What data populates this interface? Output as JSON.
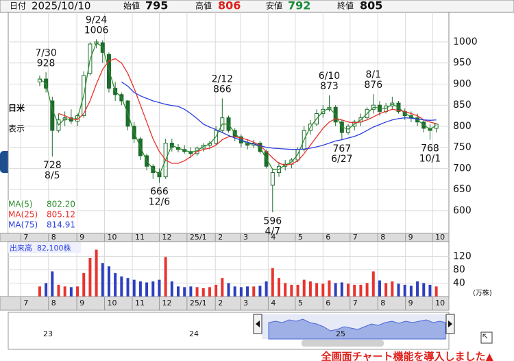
{
  "header": {
    "items": [
      {
        "label": "日付",
        "value": "2025/10/10",
        "color": "#111111"
      },
      {
        "label": "始値",
        "value": 795,
        "color": "#111111"
      },
      {
        "label": "高値",
        "value": 806,
        "color": "#e0201b"
      },
      {
        "label": "安値",
        "value": 792,
        "color": "#1c8a3a"
      },
      {
        "label": "終値",
        "value": 805,
        "color": "#111111"
      }
    ]
  },
  "side": {
    "labels": [
      "日米",
      "表示"
    ]
  },
  "footer": "全画面チャート機能を導入しました▲",
  "chart_data": [
    {
      "type": "candlestick",
      "x": [
        3,
        4,
        5,
        6,
        7,
        8,
        9,
        10,
        11,
        12,
        13,
        14,
        15,
        16,
        17,
        18,
        19,
        20,
        21,
        22,
        23,
        24,
        25,
        26,
        27,
        28,
        29,
        30,
        31,
        32,
        33,
        34,
        35,
        36,
        37,
        38,
        39,
        40,
        41,
        42,
        43,
        44,
        45,
        46,
        47,
        48,
        49,
        50,
        51,
        52,
        53,
        54,
        55,
        56,
        57,
        58,
        59,
        60,
        61,
        62,
        63,
        64,
        65,
        66
      ],
      "open": [
        905,
        912,
        860,
        790,
        815,
        820,
        812,
        825,
        925,
        995,
        998,
        970,
        890,
        875,
        860,
        800,
        770,
        730,
        705,
        690,
        680,
        760,
        750,
        745,
        740,
        735,
        748,
        755,
        760,
        790,
        820,
        790,
        775,
        760,
        755,
        760,
        740,
        660,
        690,
        705,
        710,
        720,
        745,
        790,
        805,
        830,
        840,
        845,
        810,
        785,
        800,
        810,
        820,
        840,
        850,
        835,
        848,
        855,
        835,
        825,
        820,
        810,
        795,
        795
      ],
      "high": [
        920,
        928,
        870,
        830,
        835,
        840,
        830,
        930,
        1000,
        1006,
        1004,
        975,
        905,
        880,
        862,
        810,
        775,
        735,
        710,
        700,
        770,
        770,
        758,
        755,
        750,
        752,
        760,
        765,
        800,
        866,
        825,
        795,
        780,
        770,
        768,
        765,
        745,
        700,
        715,
        720,
        725,
        750,
        800,
        815,
        840,
        850,
        873,
        850,
        815,
        805,
        815,
        830,
        845,
        876,
        860,
        855,
        870,
        860,
        842,
        835,
        830,
        815,
        805,
        806
      ],
      "low": [
        895,
        880,
        728,
        785,
        800,
        805,
        800,
        820,
        920,
        985,
        950,
        880,
        860,
        850,
        790,
        760,
        720,
        695,
        675,
        666,
        675,
        740,
        738,
        735,
        725,
        730,
        740,
        745,
        755,
        785,
        785,
        765,
        750,
        745,
        748,
        735,
        700,
        596,
        680,
        695,
        700,
        715,
        740,
        780,
        800,
        820,
        835,
        800,
        767,
        780,
        790,
        800,
        815,
        830,
        825,
        830,
        840,
        830,
        815,
        810,
        800,
        785,
        768,
        785
      ],
      "close": [
        912,
        890,
        790,
        815,
        820,
        812,
        825,
        920,
        995,
        1000,
        975,
        890,
        875,
        860,
        800,
        770,
        730,
        705,
        690,
        680,
        760,
        750,
        745,
        740,
        735,
        748,
        755,
        760,
        790,
        820,
        790,
        775,
        760,
        755,
        760,
        740,
        705,
        690,
        705,
        710,
        720,
        745,
        790,
        805,
        830,
        840,
        845,
        810,
        785,
        800,
        810,
        820,
        840,
        850,
        835,
        848,
        855,
        835,
        825,
        820,
        810,
        795,
        790,
        805
      ],
      "candle_color": "#1e6b2e",
      "series": [
        {
          "name": "MA(5)",
          "color": "#2e8b2e",
          "last": {
            "value": 802.2,
            "label": "802.20"
          },
          "values": [
            912,
            901,
            840,
            803,
            818,
            816,
            819,
            873,
            958,
            998,
            988,
            933,
            883,
            868,
            830,
            785,
            750,
            718,
            698,
            685,
            720,
            755,
            748,
            743,
            738,
            742,
            752,
            758,
            775,
            805,
            805,
            783,
            768,
            758,
            758,
            750,
            723,
            698,
            698,
            708,
            715,
            733,
            768,
            798,
            818,
            835,
            843,
            828,
            798,
            793,
            805,
            815,
            830,
            845,
            843,
            842,
            852,
            845,
            830,
            823,
            815,
            803,
            793,
            802
          ]
        },
        {
          "name": "MA(25)",
          "color": "#e8302a",
          "last": {
            "value": 805.12,
            "label": "805.12"
          },
          "values": [
            null,
            null,
            null,
            830,
            825,
            818,
            815,
            830,
            860,
            900,
            935,
            955,
            960,
            950,
            925,
            890,
            850,
            810,
            770,
            740,
            720,
            712,
            712,
            718,
            728,
            740,
            745,
            748,
            755,
            768,
            775,
            775,
            772,
            768,
            762,
            755,
            740,
            725,
            712,
            708,
            710,
            718,
            735,
            755,
            775,
            795,
            810,
            818,
            815,
            810,
            808,
            810,
            815,
            822,
            830,
            835,
            840,
            838,
            835,
            830,
            825,
            815,
            810,
            806
          ]
        },
        {
          "name": "MA(75)",
          "color": "#2a3fe0",
          "last": {
            "value": 814.91,
            "label": "814.91"
          },
          "values": [
            null,
            null,
            null,
            null,
            null,
            null,
            null,
            null,
            null,
            null,
            null,
            null,
            null,
            905,
            895,
            880,
            872,
            866,
            860,
            856,
            852,
            849,
            847,
            840,
            830,
            818,
            805,
            798,
            792,
            785,
            778,
            772,
            767,
            762,
            758,
            754,
            750,
            748,
            747,
            746,
            745,
            745,
            746,
            748,
            751,
            755,
            760,
            765,
            768,
            772,
            776,
            782,
            790,
            798,
            804,
            810,
            815,
            818,
            820,
            819,
            817,
            815,
            814,
            815
          ]
        }
      ],
      "annotations": [
        {
          "x": 4,
          "date": "7/30",
          "value": 928,
          "pos": "above"
        },
        {
          "x": 5,
          "date": "8/5",
          "value": 728,
          "pos": "below"
        },
        {
          "x": 12,
          "date": "9/24",
          "value": 1006,
          "pos": "above"
        },
        {
          "x": 22,
          "date": "12/6",
          "value": 666,
          "pos": "below"
        },
        {
          "x": 32,
          "date": "2/12",
          "value": 866,
          "pos": "above"
        },
        {
          "x": 40,
          "date": "4/7",
          "value": 596,
          "pos": "below"
        },
        {
          "x": 49,
          "date": "6/10",
          "value": 873,
          "pos": "above"
        },
        {
          "x": 51,
          "date": "6/27",
          "value": 767,
          "pos": "below"
        },
        {
          "x": 56,
          "date": "8/1",
          "value": 876,
          "pos": "above"
        },
        {
          "x": 65,
          "date": "10/1",
          "value": 768,
          "pos": "below"
        }
      ],
      "xlim": [
        -2,
        68
      ],
      "xticks": [
        {
          "value": 0,
          "label": "7"
        },
        {
          "value": 4.4,
          "label": "8"
        },
        {
          "value": 8.9,
          "label": "9"
        },
        {
          "value": 13.3,
          "label": "10"
        },
        {
          "value": 17.7,
          "label": "11"
        },
        {
          "value": 22,
          "label": "12"
        },
        {
          "value": 26.4,
          "label": "25/1"
        },
        {
          "value": 30.9,
          "label": "2"
        },
        {
          "value": 34.9,
          "label": "3"
        },
        {
          "value": 39.3,
          "label": "4"
        },
        {
          "value": 43.6,
          "label": "5"
        },
        {
          "value": 48,
          "label": "6"
        },
        {
          "value": 52.3,
          "label": "7"
        },
        {
          "value": 56.7,
          "label": "8"
        },
        {
          "value": 61.1,
          "label": "9"
        },
        {
          "value": 65.4,
          "label": "10"
        }
      ],
      "ylim": [
        546,
        1070
      ],
      "yticks": [
        600,
        650,
        700,
        750,
        800,
        850,
        900,
        950,
        1000
      ],
      "grid": true
    },
    {
      "type": "bar",
      "title": "出来高",
      "last": {
        "value": 82100,
        "label": "82,100株"
      },
      "x": [
        3,
        4,
        5,
        6,
        7,
        8,
        9,
        10,
        11,
        12,
        13,
        14,
        15,
        16,
        17,
        18,
        19,
        20,
        21,
        22,
        23,
        24,
        25,
        26,
        27,
        28,
        29,
        30,
        31,
        32,
        33,
        34,
        35,
        36,
        37,
        38,
        39,
        40,
        41,
        42,
        43,
        44,
        45,
        46,
        47,
        48,
        49,
        50,
        51,
        52,
        53,
        54,
        55,
        56,
        57,
        58,
        59,
        60,
        61,
        62,
        63,
        64,
        65,
        66
      ],
      "values": [
        30,
        40,
        75,
        35,
        30,
        28,
        30,
        70,
        115,
        140,
        100,
        90,
        70,
        60,
        55,
        50,
        45,
        42,
        45,
        50,
        118,
        45,
        30,
        28,
        30,
        28,
        25,
        28,
        35,
        55,
        40,
        30,
        28,
        30,
        30,
        32,
        45,
        85,
        55,
        40,
        35,
        35,
        50,
        45,
        40,
        38,
        48,
        40,
        42,
        38,
        35,
        35,
        40,
        75,
        48,
        40,
        45,
        38,
        35,
        32,
        45,
        40,
        35,
        30
      ],
      "up_color": "#e8342f",
      "down_color": "#2d3fbf",
      "y_unit": "(万株)",
      "xlim": [
        -2,
        68
      ],
      "xticks": [
        {
          "value": 0,
          "label": "7"
        },
        {
          "value": 4.4,
          "label": "8"
        },
        {
          "value": 8.9,
          "label": "9"
        },
        {
          "value": 13.3,
          "label": "10"
        },
        {
          "value": 17.7,
          "label": "11"
        },
        {
          "value": 22,
          "label": "12"
        },
        {
          "value": 26.4,
          "label": "25/1"
        },
        {
          "value": 30.9,
          "label": "2"
        },
        {
          "value": 34.9,
          "label": "3"
        },
        {
          "value": 39.3,
          "label": "4"
        },
        {
          "value": 43.6,
          "label": "5"
        },
        {
          "value": 48,
          "label": "6"
        },
        {
          "value": 52.3,
          "label": "7"
        },
        {
          "value": 56.7,
          "label": "8"
        },
        {
          "value": 61.1,
          "label": "9"
        },
        {
          "value": 65.4,
          "label": "10"
        }
      ],
      "ylim": [
        0,
        164
      ],
      "yticks": [
        40,
        80,
        120
      ],
      "grid": true
    },
    {
      "type": "navigator",
      "labels": [
        "23",
        "24",
        "25"
      ]
    }
  ]
}
